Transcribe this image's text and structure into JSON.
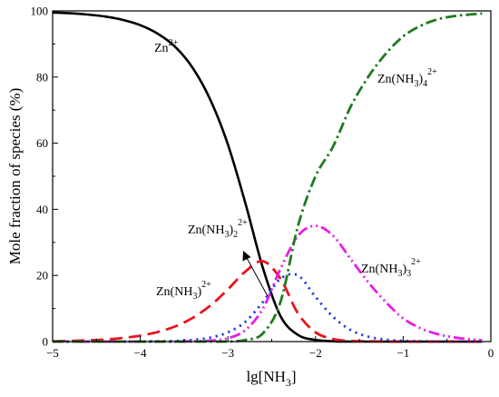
{
  "chart_data": {
    "type": "line",
    "title": "",
    "xlabel": "lg[NH3]",
    "ylabel": "Mole fraction of species (%)",
    "xlim": [
      -5,
      0
    ],
    "ylim": [
      0,
      100
    ],
    "x_ticks": [
      -5,
      -4,
      -3,
      -2,
      -1,
      0
    ],
    "y_ticks": [
      0,
      20,
      40,
      60,
      80,
      100
    ],
    "grid": false,
    "legend": "none (species labelled directly on curves)",
    "x": [
      -5.0,
      -4.8,
      -4.6,
      -4.4,
      -4.2,
      -4.0,
      -3.8,
      -3.6,
      -3.4,
      -3.2,
      -3.0,
      -2.8,
      -2.6,
      -2.4,
      -2.2,
      -2.0,
      -1.8,
      -1.6,
      -1.4,
      -1.2,
      -1.0,
      -0.8,
      -0.6,
      -0.4,
      -0.2,
      -0.1
    ],
    "series": [
      {
        "name": "Zn2+",
        "color": "#000000",
        "dash": "solid",
        "values": [
          99.5,
          99.3,
          98.9,
          98.3,
          97.3,
          95.7,
          93.1,
          89.1,
          82.7,
          73.1,
          59.6,
          41.8,
          22.2,
          7.7,
          2.0,
          0.5,
          0.1,
          0,
          0,
          0,
          0,
          0,
          0,
          0,
          0,
          0
        ]
      },
      {
        "name": "Zn(NH3)2+",
        "color": "#e8141e",
        "dash": "long-dash",
        "values": [
          0.1,
          0.2,
          0.4,
          0.6,
          1.1,
          1.8,
          2.9,
          4.6,
          7.2,
          10.9,
          15.8,
          21.2,
          24.3,
          19.0,
          8.5,
          2.8,
          0.8,
          0.2,
          0.1,
          0,
          0,
          0,
          0,
          0,
          0,
          0
        ]
      },
      {
        "name": "Zn(NH3)22+",
        "color": "#1f3fd9",
        "dash": "dot",
        "values": [
          0,
          0,
          0,
          0,
          0,
          0,
          0.1,
          0.2,
          0.5,
          1.2,
          2.8,
          6.0,
          12.0,
          19.0,
          20.0,
          13.5,
          7.5,
          3.5,
          1.5,
          0.6,
          0.2,
          0.1,
          0,
          0,
          0,
          0
        ]
      },
      {
        "name": "Zn(NH3)32+",
        "color": "#e61ee6",
        "dash": "dash-dot-dot",
        "values": [
          0,
          0,
          0,
          0,
          0,
          0,
          0,
          0,
          0.1,
          0.3,
          1.0,
          3.5,
          10.0,
          22.0,
          32.0,
          35.0,
          32.0,
          25.0,
          18.0,
          12.0,
          7.0,
          4.0,
          2.2,
          1.2,
          0.6,
          0.4
        ]
      },
      {
        "name": "Zn(NH3)42+",
        "color": "#1e7b1e",
        "dash": "dash-dot",
        "values": [
          0,
          0,
          0,
          0,
          0,
          0,
          0,
          0,
          0,
          0,
          0,
          0.5,
          2.5,
          12.0,
          35.0,
          50.0,
          59.0,
          71.0,
          80.0,
          87.0,
          92.3,
          95.5,
          97.5,
          98.5,
          99.0,
          99.2
        ]
      }
    ],
    "annotations": [
      {
        "text": "Zn",
        "sup": "2+"
      },
      {
        "text": "Zn(NH",
        "sub": "3",
        "text2": ")",
        "sub2": "4",
        "sup": "2+"
      },
      {
        "text": "Zn(NH",
        "sub": "3",
        "text2": ")",
        "sub2": "2",
        "sup": "2+"
      },
      {
        "text": "Zn(NH",
        "sub": "3",
        "text2": ")",
        "sup": "2+"
      },
      {
        "text": "Zn(NH",
        "sub": "3",
        "text2": ")",
        "sub2": "3",
        "sup": "2+"
      }
    ],
    "xlabel_parts": {
      "text": "lg[NH",
      "sub": "3",
      "text2": "]"
    }
  }
}
